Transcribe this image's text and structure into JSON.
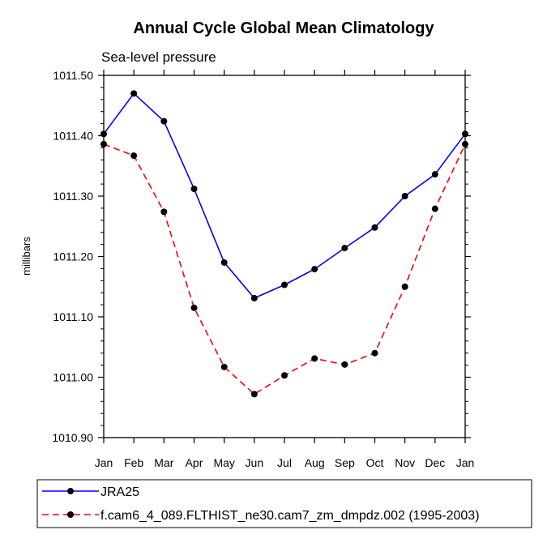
{
  "chart_data": {
    "type": "line",
    "title": "Annual Cycle Global Mean Climatology",
    "subtitle": "Sea-level pressure",
    "xlabel": "",
    "ylabel": "millibars",
    "categories": [
      "Jan",
      "Feb",
      "Mar",
      "Apr",
      "May",
      "Jun",
      "Jul",
      "Aug",
      "Sep",
      "Oct",
      "Nov",
      "Dec",
      "Jan"
    ],
    "ylim": [
      1010.9,
      1011.5
    ],
    "yticks": [
      "1010.90",
      "1011.00",
      "1011.10",
      "1011.20",
      "1011.30",
      "1011.40",
      "1011.50"
    ],
    "grid": false,
    "legend_position": "bottom",
    "series": [
      {
        "name": "JRA25",
        "color": "#0000ff",
        "style": "solid",
        "values": [
          1011.403,
          1011.47,
          1011.424,
          1011.312,
          1011.19,
          1011.131,
          1011.153,
          1011.179,
          1011.214,
          1011.248,
          1011.3,
          1011.336,
          1011.403
        ]
      },
      {
        "name": "f.cam6_4_089.FLTHIST_ne30.cam7_zm_dmpdz.002 (1995-2003)",
        "color": "#ff0000",
        "style": "dashed",
        "values": [
          1011.386,
          1011.367,
          1011.274,
          1011.115,
          1011.017,
          1010.972,
          1011.003,
          1011.031,
          1011.021,
          1011.04,
          1011.15,
          1011.279,
          1011.386
        ]
      }
    ]
  }
}
